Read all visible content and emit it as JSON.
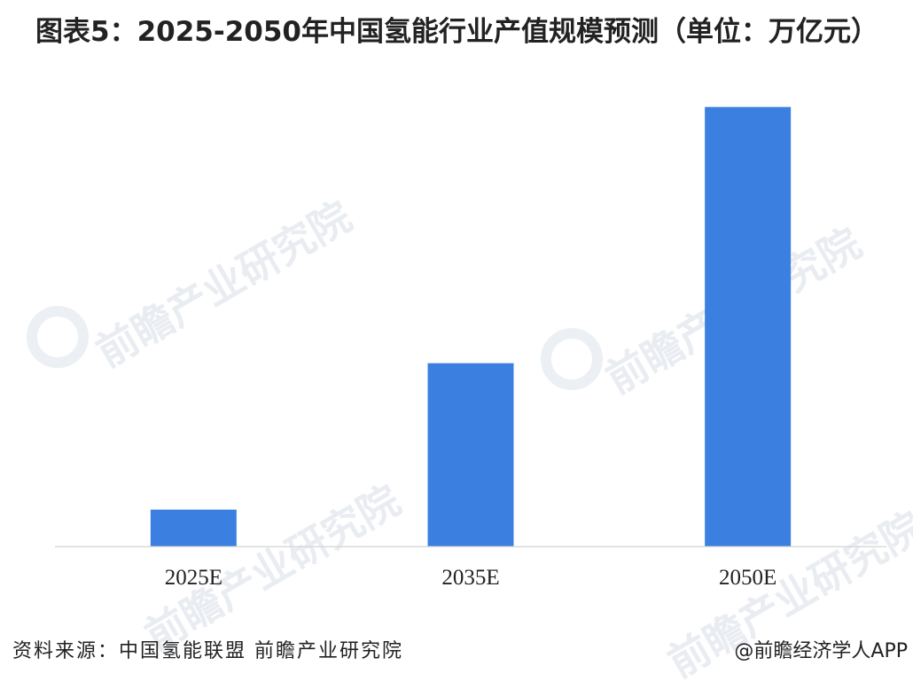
{
  "chart_data": {
    "type": "bar",
    "title": "图表5：2025-2050年中国氢能行业产值规模预测（单位：万亿元）",
    "categories": [
      "2025E",
      "2035E",
      "2050E"
    ],
    "values": [
      1,
      5,
      12
    ],
    "ylim": [
      0,
      12.5
    ],
    "xlabel": "",
    "ylabel": "",
    "grid": false,
    "legend": "none",
    "bar_color": "#3b80e0",
    "axis_color": "#d9d9d9"
  },
  "watermark": {
    "text": "前瞻产业研究院"
  },
  "footer": {
    "source": "资料来源：中国氢能联盟 前瞻产业研究院",
    "credit": "@前瞻经济学人APP"
  }
}
